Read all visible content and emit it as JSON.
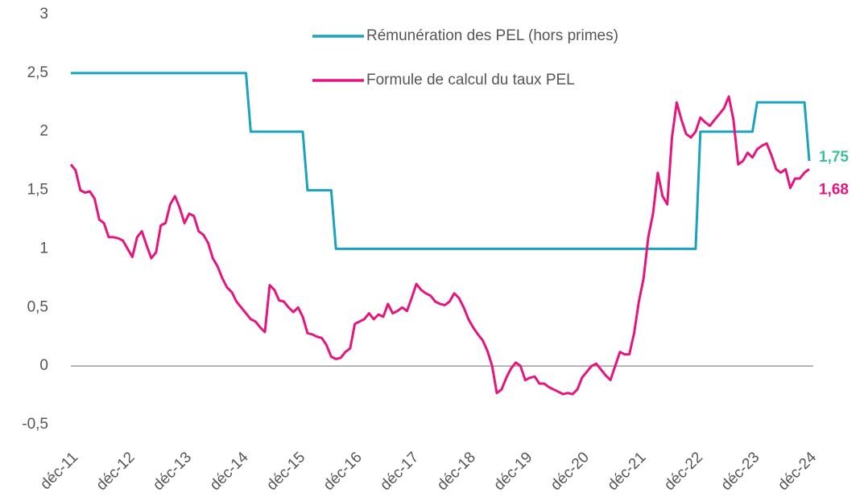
{
  "chart_data": {
    "type": "line",
    "categories": [
      "déc-11",
      null,
      null,
      null,
      null,
      null,
      null,
      null,
      null,
      null,
      null,
      null,
      "déc-12",
      null,
      null,
      null,
      null,
      null,
      null,
      null,
      null,
      null,
      null,
      null,
      "déc-13",
      null,
      null,
      null,
      null,
      null,
      null,
      null,
      null,
      null,
      null,
      null,
      "déc-14",
      null,
      null,
      null,
      null,
      null,
      null,
      null,
      null,
      null,
      null,
      null,
      "déc-15",
      null,
      null,
      null,
      null,
      null,
      null,
      null,
      null,
      null,
      null,
      null,
      "déc-16",
      null,
      null,
      null,
      null,
      null,
      null,
      null,
      null,
      null,
      null,
      null,
      "déc-17",
      null,
      null,
      null,
      null,
      null,
      null,
      null,
      null,
      null,
      null,
      null,
      "déc-18",
      null,
      null,
      null,
      null,
      null,
      null,
      null,
      null,
      null,
      null,
      null,
      "déc-19",
      null,
      null,
      null,
      null,
      null,
      null,
      null,
      null,
      null,
      null,
      null,
      "déc-20",
      null,
      null,
      null,
      null,
      null,
      null,
      null,
      null,
      null,
      null,
      null,
      "déc-21",
      null,
      null,
      null,
      null,
      null,
      null,
      null,
      null,
      null,
      null,
      null,
      "déc-22",
      null,
      null,
      null,
      null,
      null,
      null,
      null,
      null,
      null,
      null,
      null,
      "déc-23",
      null,
      null,
      null,
      null,
      null,
      null,
      null,
      null,
      null,
      null,
      null,
      "déc-24"
    ],
    "series": [
      {
        "name": "Rémunération des PEL (hors primes)",
        "color": "#1aa3bd",
        "label_color": "#3dbf9f",
        "values": [
          2.5,
          2.5,
          2.5,
          2.5,
          2.5,
          2.5,
          2.5,
          2.5,
          2.5,
          2.5,
          2.5,
          2.5,
          2.5,
          2.5,
          2.5,
          2.5,
          2.5,
          2.5,
          2.5,
          2.5,
          2.5,
          2.5,
          2.5,
          2.5,
          2.5,
          2.5,
          2.5,
          2.5,
          2.5,
          2.5,
          2.5,
          2.5,
          2.5,
          2.5,
          2.5,
          2.5,
          2.5,
          2.5,
          2,
          2,
          2,
          2,
          2,
          2,
          2,
          2,
          2,
          2,
          2,
          2,
          1.5,
          1.5,
          1.5,
          1.5,
          1.5,
          1.5,
          1,
          1,
          1,
          1,
          1,
          1,
          1,
          1,
          1,
          1,
          1,
          1,
          1,
          1,
          1,
          1,
          1,
          1,
          1,
          1,
          1,
          1,
          1,
          1,
          1,
          1,
          1,
          1,
          1,
          1,
          1,
          1,
          1,
          1,
          1,
          1,
          1,
          1,
          1,
          1,
          1,
          1,
          1,
          1,
          1,
          1,
          1,
          1,
          1,
          1,
          1,
          1,
          1,
          1,
          1,
          1,
          1,
          1,
          1,
          1,
          1,
          1,
          1,
          1,
          1,
          1,
          1,
          1,
          1,
          1,
          1,
          1,
          1,
          1,
          1,
          1,
          1,
          2,
          2,
          2,
          2,
          2,
          2,
          2,
          2,
          2,
          2,
          2,
          2,
          2.25,
          2.25,
          2.25,
          2.25,
          2.25,
          2.25,
          2.25,
          2.25,
          2.25,
          2.25,
          2.25,
          1.75
        ],
        "value_labels": [
          null,
          null,
          null,
          null,
          null,
          null,
          null,
          null,
          null,
          null,
          null,
          null,
          null,
          null,
          null,
          null,
          null,
          null,
          null,
          null,
          null,
          null,
          null,
          null,
          null,
          null,
          null,
          null,
          null,
          null,
          null,
          null,
          null,
          null,
          null,
          null,
          null,
          null,
          null,
          null,
          null,
          null,
          null,
          null,
          null,
          null,
          null,
          null,
          null,
          null,
          null,
          null,
          null,
          null,
          null,
          null,
          null,
          null,
          null,
          null,
          null,
          null,
          null,
          null,
          null,
          null,
          null,
          null,
          null,
          null,
          null,
          null,
          null,
          null,
          null,
          null,
          null,
          null,
          null,
          null,
          null,
          null,
          null,
          null,
          null,
          null,
          null,
          null,
          null,
          null,
          null,
          null,
          null,
          null,
          null,
          null,
          null,
          null,
          null,
          null,
          null,
          null,
          null,
          null,
          null,
          null,
          null,
          null,
          null,
          null,
          null,
          null,
          null,
          null,
          null,
          null,
          null,
          null,
          null,
          null,
          null,
          null,
          null,
          null,
          null,
          null,
          null,
          null,
          null,
          null,
          null,
          null,
          null,
          null,
          null,
          null,
          null,
          null,
          null,
          null,
          null,
          null,
          null,
          null,
          null,
          null,
          null,
          null,
          null,
          null,
          null,
          null,
          null,
          null,
          null,
          null,
          "1,75"
        ]
      },
      {
        "name": "Formule de calcul du taux PEL",
        "color": "#e5157d",
        "label_color": "#e5157d",
        "values": [
          1.72,
          1.67,
          1.5,
          1.48,
          1.49,
          1.43,
          1.25,
          1.22,
          1.1,
          1.1,
          1.09,
          1.07,
          1.0,
          0.93,
          1.1,
          1.15,
          1.03,
          0.92,
          0.97,
          1.2,
          1.22,
          1.38,
          1.45,
          1.35,
          1.22,
          1.3,
          1.28,
          1.15,
          1.12,
          1.05,
          0.92,
          0.85,
          0.75,
          0.67,
          0.63,
          0.55,
          0.5,
          0.45,
          0.4,
          0.38,
          0.33,
          0.29,
          0.69,
          0.65,
          0.56,
          0.55,
          0.5,
          0.46,
          0.5,
          0.42,
          0.28,
          0.27,
          0.25,
          0.24,
          0.18,
          0.08,
          0.06,
          0.07,
          0.12,
          0.15,
          0.36,
          0.38,
          0.4,
          0.45,
          0.4,
          0.44,
          0.42,
          0.53,
          0.45,
          0.47,
          0.5,
          0.47,
          0.58,
          0.7,
          0.65,
          0.62,
          0.6,
          0.55,
          0.53,
          0.52,
          0.55,
          0.62,
          0.58,
          0.5,
          0.4,
          0.33,
          0.27,
          0.22,
          0.13,
          0.0,
          -0.23,
          -0.2,
          -0.1,
          -0.02,
          0.03,
          0.0,
          -0.12,
          -0.1,
          -0.09,
          -0.15,
          -0.15,
          -0.18,
          -0.2,
          -0.22,
          -0.24,
          -0.23,
          -0.24,
          -0.2,
          -0.1,
          -0.05,
          0.0,
          0.02,
          -0.03,
          -0.08,
          -0.12,
          0.0,
          0.12,
          0.1,
          0.1,
          0.28,
          0.55,
          0.75,
          1.1,
          1.3,
          1.65,
          1.45,
          1.38,
          1.95,
          2.25,
          2.1,
          1.98,
          1.95,
          2.0,
          2.12,
          2.08,
          2.05,
          2.1,
          2.15,
          2.2,
          2.3,
          2.1,
          1.72,
          1.75,
          1.82,
          1.78,
          1.85,
          1.88,
          1.9,
          1.8,
          1.68,
          1.65,
          1.68,
          1.52,
          1.6,
          1.6,
          1.65,
          1.68
        ],
        "value_labels": [
          null,
          null,
          null,
          null,
          null,
          null,
          null,
          null,
          null,
          null,
          null,
          null,
          null,
          null,
          null,
          null,
          null,
          null,
          null,
          null,
          null,
          null,
          null,
          null,
          null,
          null,
          null,
          null,
          null,
          null,
          null,
          null,
          null,
          null,
          null,
          null,
          null,
          null,
          null,
          null,
          null,
          null,
          null,
          null,
          null,
          null,
          null,
          null,
          null,
          null,
          null,
          null,
          null,
          null,
          null,
          null,
          null,
          null,
          null,
          null,
          null,
          null,
          null,
          null,
          null,
          null,
          null,
          null,
          null,
          null,
          null,
          null,
          null,
          null,
          null,
          null,
          null,
          null,
          null,
          null,
          null,
          null,
          null,
          null,
          null,
          null,
          null,
          null,
          null,
          null,
          null,
          null,
          null,
          null,
          null,
          null,
          null,
          null,
          null,
          null,
          null,
          null,
          null,
          null,
          null,
          null,
          null,
          null,
          null,
          null,
          null,
          null,
          null,
          null,
          null,
          null,
          null,
          null,
          null,
          null,
          null,
          null,
          null,
          null,
          null,
          null,
          null,
          null,
          null,
          null,
          null,
          null,
          null,
          null,
          null,
          null,
          null,
          null,
          null,
          null,
          null,
          null,
          null,
          null,
          null,
          null,
          null,
          null,
          null,
          null,
          null,
          null,
          null,
          null,
          null,
          null,
          "1,68"
        ]
      }
    ],
    "ylim": [
      -0.5,
      3
    ],
    "yticks": [
      {
        "value": -0.5,
        "label": "-0,5"
      },
      0,
      {
        "value": 0.5,
        "label": "0,5"
      },
      1,
      {
        "value": 1.5,
        "label": "1,5"
      },
      2,
      {
        "value": 2.5,
        "label": "2,5"
      },
      3
    ],
    "grid": false,
    "legend": "top"
  }
}
